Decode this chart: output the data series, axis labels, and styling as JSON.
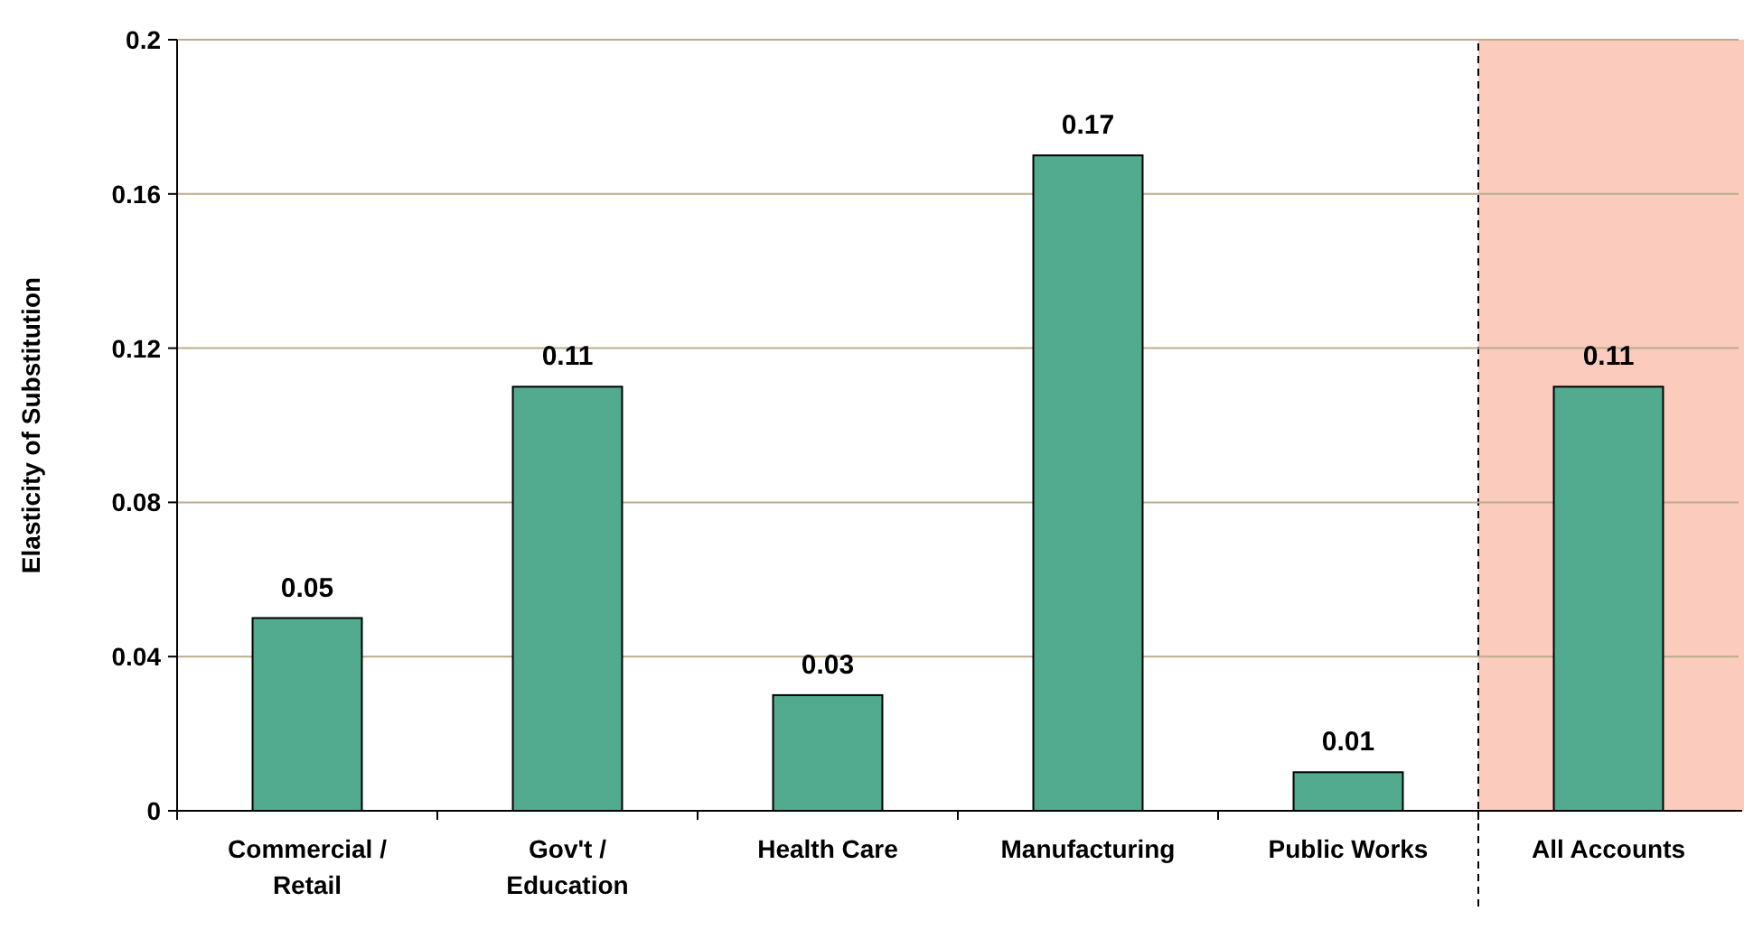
{
  "chart_data": {
    "type": "bar",
    "ylabel": "Elasticity of Substitution",
    "categories": [
      "Commercial / Retail",
      "Gov't / Education",
      "Health Care",
      "Manufacturing",
      "Public Works",
      "All Accounts"
    ],
    "values": [
      0.05,
      0.11,
      0.03,
      0.17,
      0.01,
      0.11
    ],
    "colors": [
      "#52ab8f",
      "#52ab8f",
      "#52ab8f",
      "#52ab8f",
      "#52ab8f",
      "#52ab8f"
    ],
    "ylim": [
      0,
      0.2
    ],
    "yticks": [
      0,
      0.04,
      0.08,
      0.12,
      0.16,
      0.2
    ],
    "grid": "y",
    "data_labels": true,
    "bands": [
      {
        "axis": "x",
        "from": "All Accounts",
        "to": "All Accounts",
        "color": "#fbcbbd"
      }
    ]
  }
}
